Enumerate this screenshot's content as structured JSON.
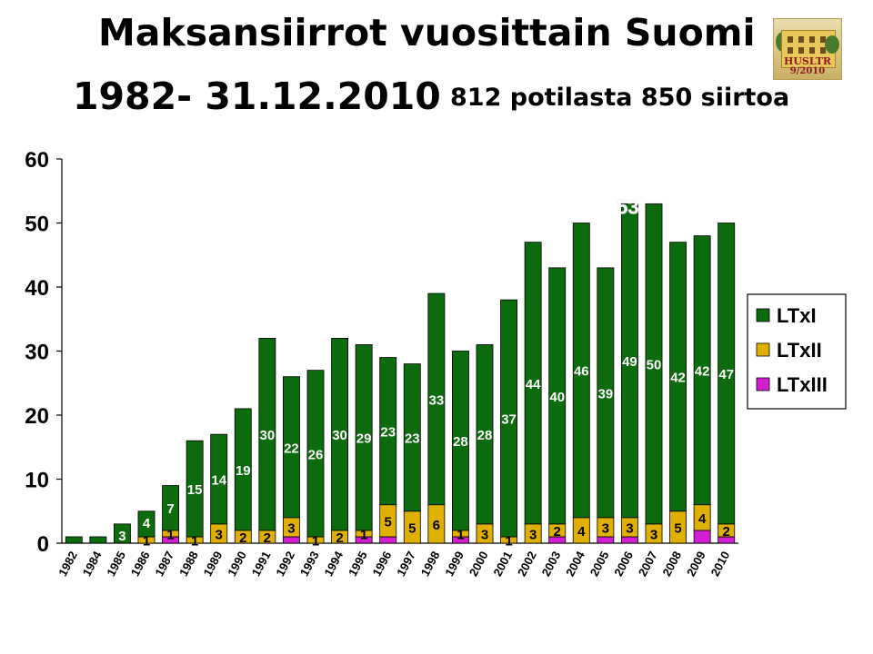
{
  "title": "Maksansiirrot vuosittain Suomi",
  "period": "1982- 31.12.2010",
  "summary": "812 potilasta 850 siirtoa",
  "logo": {
    "line1": "HUSLTR",
    "line2": "9/2010"
  },
  "colors": {
    "LTxI": "#0c6b0c",
    "LTxII": "#e0b000",
    "LTxIII": "#d21fd2"
  },
  "chart_data": {
    "type": "bar",
    "stacked": true,
    "categories": [
      "1982",
      "1984",
      "1985",
      "1986",
      "1987",
      "1988",
      "1989",
      "1990",
      "1991",
      "1992",
      "1993",
      "1994",
      "1995",
      "1996",
      "1997",
      "1998",
      "1999",
      "2000",
      "2001",
      "2002",
      "2003",
      "2004",
      "2005",
      "2006",
      "2007",
      "2008",
      "2009",
      "2010"
    ],
    "series": [
      {
        "name": "LTxIII",
        "values": [
          0,
          0,
          0,
          0,
          1,
          0,
          0,
          0,
          0,
          1,
          0,
          0,
          1,
          1,
          0,
          0,
          1,
          0,
          0,
          0,
          1,
          0,
          1,
          1,
          0,
          0,
          2,
          1
        ]
      },
      {
        "name": "LTxII",
        "values": [
          0,
          0,
          0,
          1,
          1,
          1,
          3,
          2,
          2,
          3,
          1,
          2,
          1,
          5,
          5,
          6,
          1,
          3,
          1,
          3,
          2,
          4,
          3,
          3,
          3,
          5,
          4,
          2
        ]
      },
      {
        "name": "LTxI",
        "values": [
          1,
          1,
          3,
          4,
          7,
          15,
          14,
          19,
          30,
          22,
          26,
          30,
          29,
          23,
          23,
          33,
          28,
          28,
          37,
          44,
          40,
          46,
          39,
          49,
          50,
          42,
          42,
          47
        ]
      }
    ],
    "yticks": [
      0,
      10,
      20,
      30,
      40,
      50,
      60
    ],
    "ylim": [
      0,
      60
    ],
    "grid": false,
    "legend": "right",
    "legend_entries": [
      "LTxI",
      "LTxII",
      "LTxIII"
    ],
    "extra_annotation": {
      "category": "2006",
      "text": "53"
    }
  }
}
